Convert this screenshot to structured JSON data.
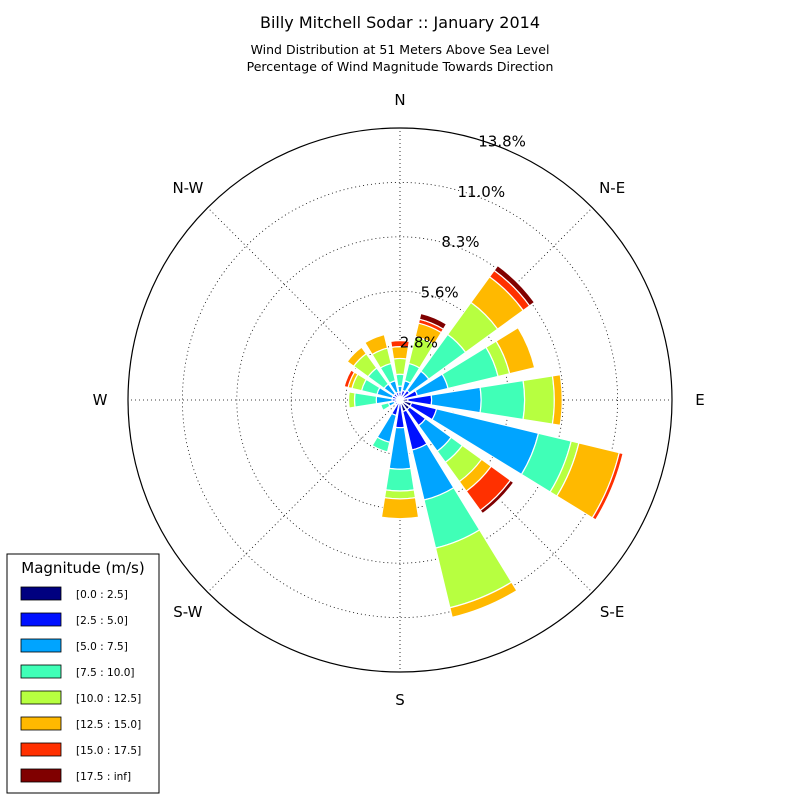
{
  "title": "Billy Mitchell Sodar :: January 2014",
  "subtitle_line1": "Wind Distribution at 51 Meters Above Sea Level",
  "subtitle_line2": "Percentage of Wind Magnitude Towards Direction",
  "chart_data": {
    "type": "windrose",
    "direction_labels": [
      "N",
      "N-E",
      "E",
      "S-E",
      "S",
      "S-W",
      "W",
      "N-W"
    ],
    "radial_ticks": [
      "2.8%",
      "5.6%",
      "8.3%",
      "11.0%",
      "13.8%"
    ],
    "radial_tick_values": [
      2.75,
      5.5,
      8.25,
      11.0,
      13.75
    ],
    "radial_max": 13.75,
    "legend_title": "Magnitude (m/s)",
    "bins": [
      {
        "label": "[0.0 : 2.5]",
        "color": "#000080"
      },
      {
        "label": "[2.5 : 5.0]",
        "color": "#0010ff"
      },
      {
        "label": "[5.0 : 7.5]",
        "color": "#00a4ff"
      },
      {
        "label": "[7.5 : 10.0]",
        "color": "#40ffb7"
      },
      {
        "label": "[10.0 : 12.5]",
        "color": "#b7ff40"
      },
      {
        "label": "[12.5 : 15.0]",
        "color": "#ffb900"
      },
      {
        "label": "[15.0 : 17.5]",
        "color": "#ff3000"
      },
      {
        "label": "[17.5 : inf]",
        "color": "#800000"
      }
    ],
    "sectors": [
      {
        "direction_deg": 0,
        "values": [
          0.1,
          0.3,
          0.3,
          0.6,
          0.8,
          0.6,
          0.3,
          0.0
        ]
      },
      {
        "direction_deg": 22.5,
        "values": [
          0.1,
          0.4,
          0.5,
          0.9,
          1.4,
          0.7,
          0.2,
          0.3
        ]
      },
      {
        "direction_deg": 45,
        "values": [
          0.1,
          0.5,
          1.2,
          2.3,
          2.0,
          1.6,
          0.4,
          0.3
        ]
      },
      {
        "direction_deg": 67.5,
        "values": [
          0.2,
          0.7,
          1.6,
          2.6,
          0.6,
          1.3,
          0.0,
          0.0
        ]
      },
      {
        "direction_deg": 90,
        "values": [
          0.4,
          1.2,
          2.5,
          2.2,
          1.5,
          0.4,
          0.0,
          0.0
        ]
      },
      {
        "direction_deg": 112.5,
        "values": [
          0.6,
          1.3,
          5.3,
          1.7,
          0.4,
          2.1,
          0.2,
          0.0
        ]
      },
      {
        "direction_deg": 135,
        "values": [
          0.6,
          1.0,
          1.6,
          0.7,
          1.2,
          0.6,
          1.2,
          0.2
        ]
      },
      {
        "direction_deg": 157.5,
        "values": [
          0.6,
          2.0,
          2.6,
          2.5,
          3.1,
          0.5,
          0.0,
          0.0
        ]
      },
      {
        "direction_deg": 180,
        "values": [
          0.1,
          1.3,
          2.1,
          1.1,
          0.4,
          1.0,
          0.0,
          0.0
        ]
      },
      {
        "direction_deg": 202.5,
        "values": [
          0.1,
          0.7,
          1.4,
          0.5,
          0.0,
          0.0,
          0.0,
          0.0
        ]
      },
      {
        "direction_deg": 225,
        "values": [
          0.1,
          0.2,
          0.0,
          0.0,
          0.0,
          0.0,
          0.0,
          0.0
        ]
      },
      {
        "direction_deg": 247.5,
        "values": [
          0.1,
          0.2,
          0.3,
          0.4,
          0.0,
          0.0,
          0.0,
          0.0
        ]
      },
      {
        "direction_deg": 270,
        "values": [
          0.1,
          0.3,
          0.8,
          1.1,
          0.3,
          0.0,
          0.0,
          0.0
        ]
      },
      {
        "direction_deg": 292.5,
        "values": [
          0.1,
          0.3,
          0.8,
          0.8,
          0.5,
          0.2,
          0.2,
          0.0
        ]
      },
      {
        "direction_deg": 315,
        "values": [
          0.1,
          0.3,
          0.6,
          1.0,
          0.9,
          0.4,
          0.0,
          0.0
        ]
      },
      {
        "direction_deg": 337.5,
        "values": [
          0.1,
          0.3,
          0.6,
          0.9,
          0.8,
          0.7,
          0.0,
          0.0
        ]
      }
    ]
  }
}
